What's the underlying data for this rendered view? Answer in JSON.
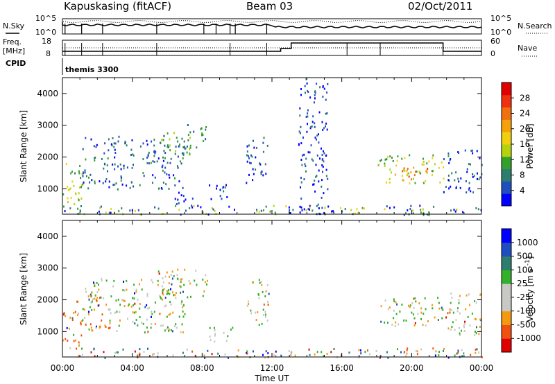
{
  "header": {
    "station": "Kapuskasing (fitACF)",
    "beam": "Beam 03",
    "date": "02/Oct/2011"
  },
  "top_panels": {
    "nsky_label": "N.Sky",
    "nsky_ticks": [
      "10^5",
      "10^0"
    ],
    "nsearch_label": "N.Search",
    "nsearch_ticks": [
      "10^5",
      "10^0"
    ],
    "freq_label_1": "Freq.",
    "freq_label_2": "[MHz]",
    "freq_ticks": [
      "18",
      "8"
    ],
    "nave_label": "Nave",
    "nave_ticks": [
      "60",
      "0"
    ],
    "cpid_label": "CPID",
    "cpid_value": "themis 3300"
  },
  "colors": {
    "power_scale": [
      "#0000ff",
      "#1f4fbf",
      "#2e7d6e",
      "#33a02c",
      "#b5d20f",
      "#f0d010",
      "#f5a20a",
      "#f07010",
      "#f03010",
      "#e00000"
    ],
    "velocity_scale": [
      "#e00000",
      "#f05010",
      "#f59a10",
      "#c8c8c4",
      "#c8c8c4",
      "#33b02c",
      "#2e7d6e",
      "#1f4fbf",
      "#0000ff"
    ],
    "ground_scatter": "#b0b0a8"
  },
  "chart_data": [
    {
      "type": "heatmap",
      "name": "power",
      "ylabel": "Slant Range [km]",
      "yticks": [
        "1000",
        "2000",
        "3000",
        "4000"
      ],
      "ylim": [
        200,
        4500
      ],
      "xlim": [
        0,
        24
      ],
      "colorbar_label": "Power [dB]",
      "colorbar_ticks": [
        "4",
        "8",
        "12",
        "16",
        "20",
        "24",
        "28"
      ],
      "colorbar_range": [
        0,
        32
      ],
      "regions": [
        {
          "t0": 0.0,
          "t1": 1.1,
          "r0": 400,
          "r1": 2000,
          "level": 14
        },
        {
          "t0": 1.1,
          "t1": 7.0,
          "r0": 1000,
          "r1": 2700,
          "level": 6
        },
        {
          "t0": 5.4,
          "t1": 7.4,
          "r0": 2100,
          "r1": 2800,
          "level": 10
        },
        {
          "t0": 7.0,
          "t1": 8.3,
          "r0": 2300,
          "r1": 3100,
          "level": 8
        },
        {
          "t0": 6.3,
          "t1": 7.5,
          "r0": 400,
          "r1": 1000,
          "level": 4
        },
        {
          "t0": 8.3,
          "t1": 9.8,
          "r0": 700,
          "r1": 1200,
          "level": 4
        },
        {
          "t0": 10.5,
          "t1": 11.8,
          "r0": 1200,
          "r1": 2700,
          "level": 5
        },
        {
          "t0": 13.5,
          "t1": 15.2,
          "r0": 200,
          "r1": 4500,
          "level": 4
        },
        {
          "t0": 18.0,
          "t1": 21.8,
          "r0": 1200,
          "r1": 2100,
          "level": 14
        },
        {
          "t0": 18.8,
          "t1": 21.3,
          "r0": 1300,
          "r1": 1700,
          "level": 22
        },
        {
          "t0": 21.8,
          "t1": 24.0,
          "r0": 900,
          "r1": 2300,
          "level": 5
        },
        {
          "t0": 0.0,
          "t1": 24.0,
          "r0": 200,
          "r1": 500,
          "level": 10
        }
      ]
    },
    {
      "type": "heatmap",
      "name": "velocity",
      "ylabel": "Slant Range [km]",
      "yticks": [
        "1000",
        "2000",
        "3000",
        "4000"
      ],
      "ylim": [
        200,
        4500
      ],
      "xlabel": "Time UT",
      "xticks": [
        "00:00",
        "04:00",
        "08:00",
        "12:00",
        "16:00",
        "20:00",
        "00:00"
      ],
      "xlim": [
        0,
        24
      ],
      "colorbar_label": "Velocity [m s^-1]",
      "colorbar_ticks": [
        "-1000",
        "-500",
        "-100",
        "-25",
        "25",
        "100",
        "500",
        "1000"
      ],
      "regions": [
        {
          "t0": 0.0,
          "t1": 1.1,
          "r0": 400,
          "r1": 2000,
          "v": -300
        },
        {
          "t0": 1.1,
          "t1": 7.0,
          "r0": 1000,
          "r1": 2700,
          "v": 0
        },
        {
          "t0": 5.4,
          "t1": 8.3,
          "r0": 2100,
          "r1": 3000,
          "v": 0
        },
        {
          "t0": 1.3,
          "t1": 2.3,
          "r0": 1000,
          "r1": 2200,
          "v": -300
        },
        {
          "t0": 2.2,
          "t1": 2.7,
          "r0": 900,
          "r1": 1500,
          "v": -300
        },
        {
          "t0": 8.3,
          "t1": 9.8,
          "r0": 700,
          "r1": 1200,
          "v": 0
        },
        {
          "t0": 10.5,
          "t1": 11.8,
          "r0": 1200,
          "r1": 2700,
          "v": 80
        },
        {
          "t0": 18.0,
          "t1": 21.8,
          "r0": 1200,
          "r1": 2100,
          "v": 0
        },
        {
          "t0": 21.8,
          "t1": 24.0,
          "r0": 900,
          "r1": 2300,
          "v": 0
        },
        {
          "t0": 0.0,
          "t1": 24.0,
          "r0": 200,
          "r1": 500,
          "v": 300
        }
      ]
    }
  ]
}
